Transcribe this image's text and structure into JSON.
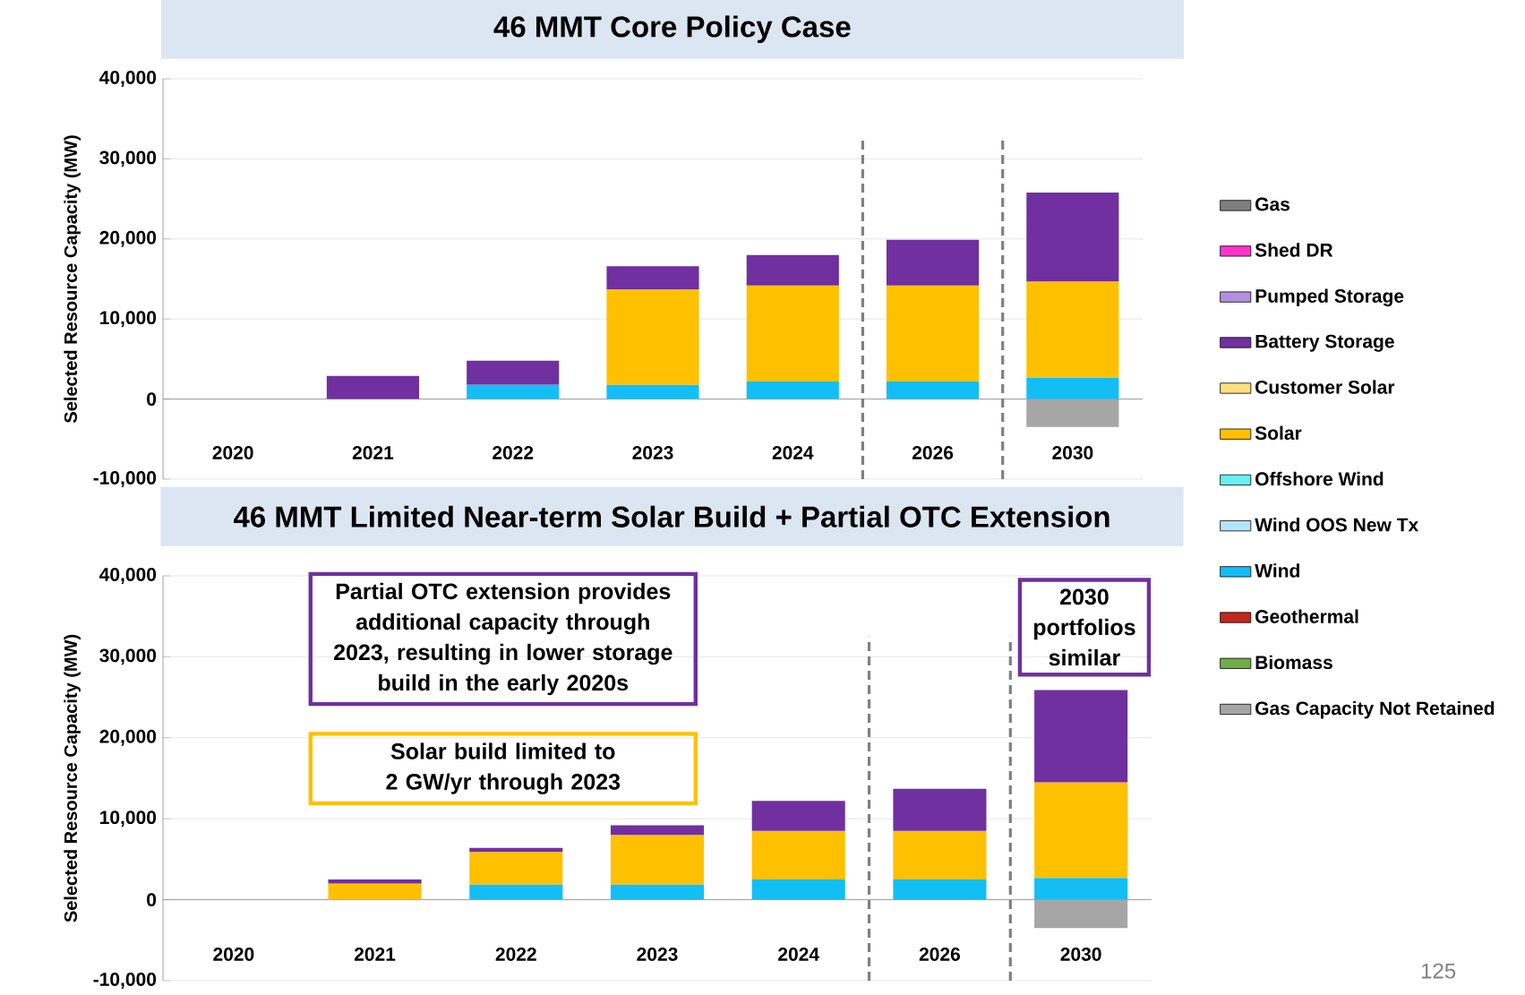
{
  "chart_data": [
    {
      "type": "bar",
      "stacked": true,
      "title": "46 MMT Core Policy Case",
      "ylabel": "Selected Resource Capacity (MW)",
      "categories": [
        "2020",
        "2021",
        "2022",
        "2023",
        "2024",
        "2026",
        "2030"
      ],
      "ylim": [
        -10000,
        40000
      ],
      "yticks": [
        {
          "value": -10000,
          "label": "-10,000"
        },
        0,
        {
          "value": 10000,
          "label": "10,000"
        },
        {
          "value": 20000,
          "label": "20,000"
        },
        {
          "value": 30000,
          "label": "30,000"
        },
        {
          "value": 40000,
          "label": "40,000"
        }
      ],
      "grid": "y",
      "legend": "right",
      "series": [
        {
          "name": "Gas Capacity Not Retained",
          "color": "#a6a6a6",
          "values": [
            0,
            0,
            0,
            0,
            0,
            0,
            -3500
          ]
        },
        {
          "name": "Biomass",
          "color": "#70ad47",
          "values": [
            0,
            0,
            0,
            0,
            0,
            0,
            0
          ]
        },
        {
          "name": "Geothermal",
          "color": "#c0281c",
          "values": [
            0,
            0,
            0,
            0,
            0,
            0,
            0
          ]
        },
        {
          "name": "Wind",
          "color": "#13bef5",
          "values": [
            0,
            0,
            1800,
            1800,
            2200,
            2200,
            2700
          ]
        },
        {
          "name": "Wind OOS New Tx",
          "color": "#b4e4fa",
          "values": [
            0,
            0,
            0,
            0,
            0,
            0,
            0
          ]
        },
        {
          "name": "Offshore Wind",
          "color": "#66f0f0",
          "values": [
            0,
            0,
            0,
            0,
            0,
            0,
            0
          ]
        },
        {
          "name": "Solar",
          "color": "#ffc000",
          "values": [
            0,
            0,
            0,
            11900,
            12000,
            12000,
            12000
          ]
        },
        {
          "name": "Customer Solar",
          "color": "#ffdf80",
          "values": [
            0,
            0,
            0,
            0,
            0,
            0,
            0
          ]
        },
        {
          "name": "Battery Storage",
          "color": "#7030a0",
          "values": [
            0,
            2900,
            3000,
            2900,
            3800,
            5700,
            11100
          ]
        },
        {
          "name": "Pumped Storage",
          "color": "#b48ee0",
          "values": [
            0,
            0,
            0,
            0,
            0,
            0,
            0
          ]
        },
        {
          "name": "Shed DR",
          "color": "#ff33cc",
          "values": [
            0,
            0,
            0,
            0,
            0,
            0,
            0
          ]
        },
        {
          "name": "Gas",
          "color": "#808080",
          "values": [
            0,
            0,
            0,
            0,
            0,
            0,
            0
          ]
        }
      ]
    },
    {
      "type": "bar",
      "stacked": true,
      "title": "46 MMT Limited Near-term Solar Build + Partial OTC Extension",
      "ylabel": "Selected Resource Capacity (MW)",
      "categories": [
        "2020",
        "2021",
        "2022",
        "2023",
        "2024",
        "2026",
        "2030"
      ],
      "ylim": [
        -10000,
        40000
      ],
      "yticks": [
        {
          "value": -10000,
          "label": "-10,000"
        },
        0,
        {
          "value": 10000,
          "label": "10,000"
        },
        {
          "value": 20000,
          "label": "20,000"
        },
        {
          "value": 30000,
          "label": "30,000"
        },
        {
          "value": 40000,
          "label": "40,000"
        }
      ],
      "grid": "y",
      "annotations": [
        "Partial OTC extension provides additional capacity through 2023, resulting in lower storage build in the early 2020s",
        "Solar build limited to 2 GW/yr through 2023",
        "2030 portfolios similar",
        "125"
      ],
      "series": [
        {
          "color": "#a6a6a6",
          "values": [
            0,
            0,
            0,
            0,
            0,
            0,
            -3500
          ]
        },
        {
          "color": "#70ad47",
          "values": [
            0,
            0,
            0,
            0,
            0,
            0,
            0
          ]
        },
        {
          "color": "#c0281c",
          "values": [
            0,
            0,
            0,
            0,
            0,
            0,
            0
          ]
        },
        {
          "color": "#13bef5",
          "values": [
            0,
            0,
            1900,
            1900,
            2500,
            2500,
            2700
          ]
        },
        {
          "color": "#b4e4fa",
          "values": [
            0,
            0,
            0,
            0,
            0,
            0,
            0
          ]
        },
        {
          "color": "#66f0f0",
          "values": [
            0,
            0,
            0,
            0,
            0,
            0,
            0
          ]
        },
        {
          "color": "#ffc000",
          "values": [
            0,
            2000,
            4000,
            6100,
            6000,
            6000,
            11800
          ]
        },
        {
          "color": "#ffdf80",
          "values": [
            0,
            0,
            0,
            0,
            0,
            0,
            0
          ]
        },
        {
          "color": "#7030a0",
          "values": [
            0,
            500,
            500,
            1200,
            3700,
            5200,
            11400
          ]
        },
        {
          "color": "#b48ee0",
          "values": [
            0,
            0,
            0,
            0,
            0,
            0,
            0
          ]
        },
        {
          "color": "#ff33cc",
          "values": [
            0,
            0,
            0,
            0,
            0,
            0,
            0
          ]
        },
        {
          "color": "#808080",
          "values": [
            0,
            0,
            0,
            0,
            0,
            0,
            0
          ]
        }
      ]
    }
  ]
}
